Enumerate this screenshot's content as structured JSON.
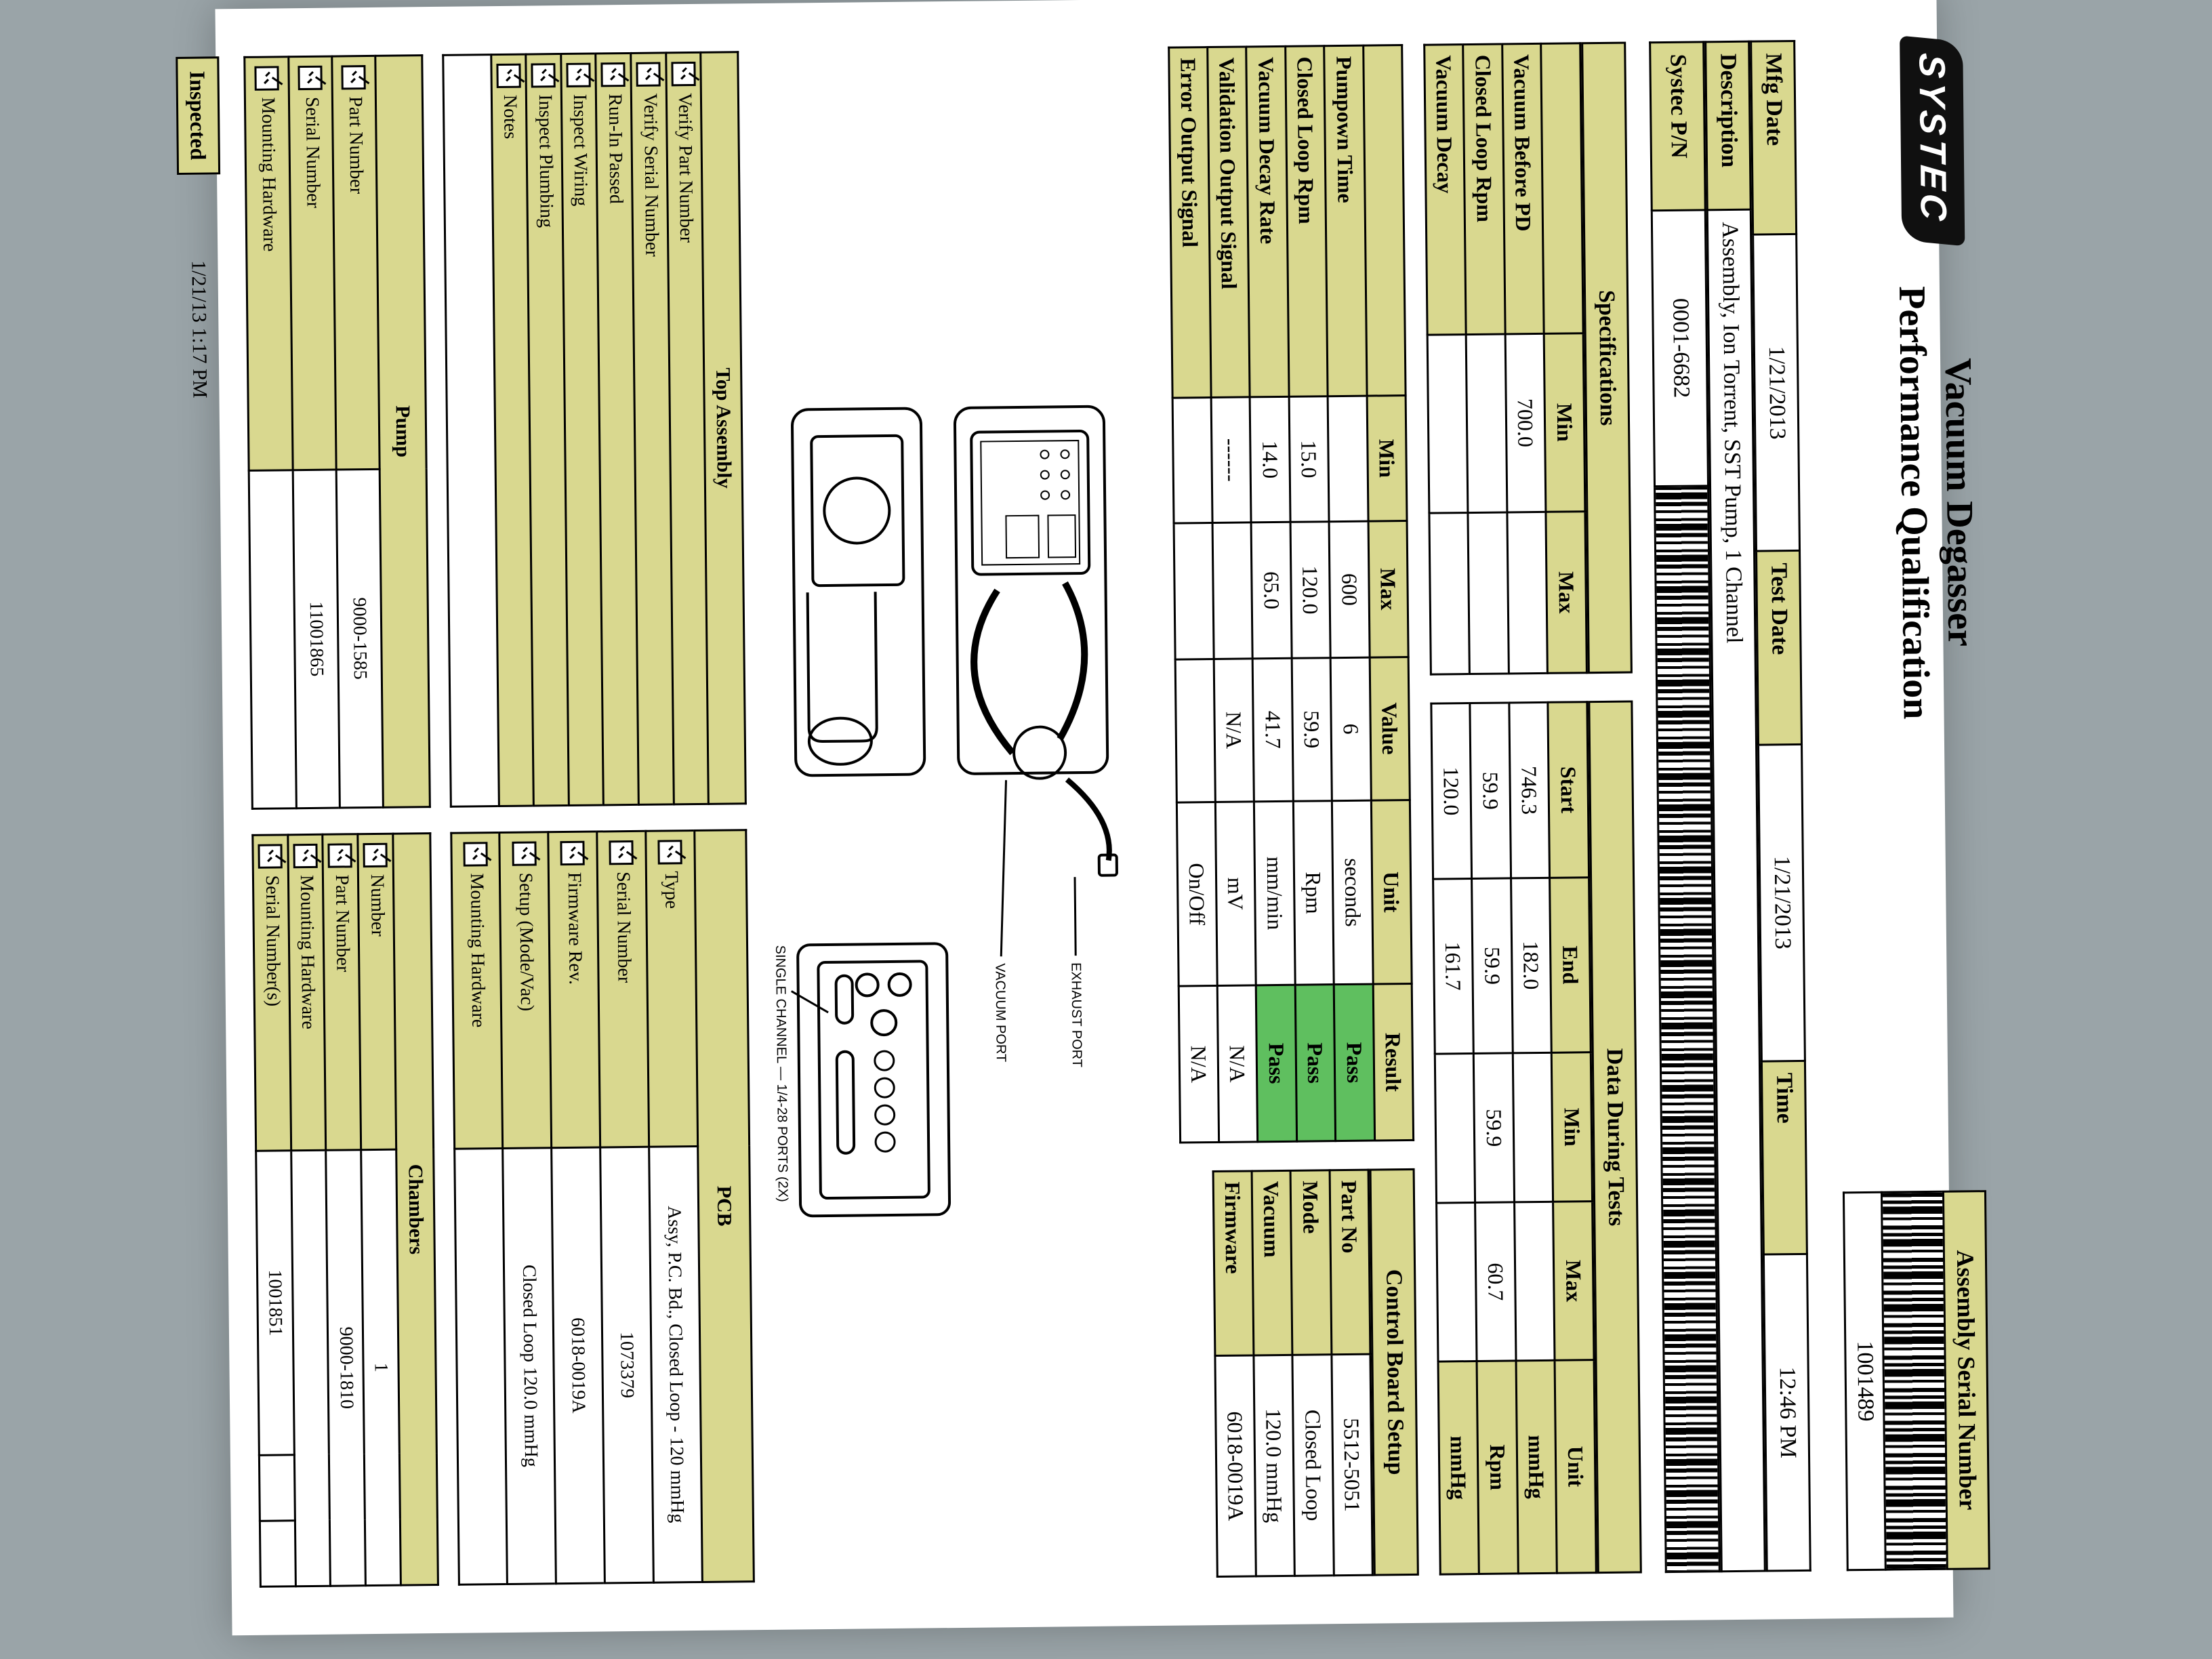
{
  "logo_text": "SYSTEC",
  "title": {
    "line1": "Vacuum Degasser",
    "line2": "Performance Qualification"
  },
  "asm_serial_label": "Assembly Serial Number",
  "asm_serial_value": "1001489",
  "header": {
    "mfg_date_label": "Mfg Date",
    "mfg_date": "1/21/2013",
    "test_date_label": "Test Date",
    "test_date": "1/21/2013",
    "time_label": "Time",
    "time": "12:46 PM",
    "description_label": "Description",
    "description": "Assembly, Ion Torrent, SST Pump, 1 Channel",
    "pn_label": "Systec P/N",
    "pn": "0001-6682"
  },
  "specs": {
    "title": "Specifications",
    "data_title": "Data During Tests",
    "cols_spec": [
      "Min",
      "Max"
    ],
    "cols_data": [
      "Start",
      "End",
      "Min",
      "Max",
      "Unit"
    ],
    "rows": [
      {
        "name": "Vacuum Before PD",
        "min": "700.0",
        "max": "",
        "start": "746.3",
        "end": "182.0",
        "dmin": "",
        "dmax": "",
        "unit": "mmHg"
      },
      {
        "name": "Closed Loop Rpm",
        "min": "",
        "max": "",
        "start": "59.9",
        "end": "59.9",
        "dmin": "59.9",
        "dmax": "60.7",
        "unit": "Rpm"
      },
      {
        "name": "Vacuum Decay",
        "min": "",
        "max": "",
        "start": "120.0",
        "end": "161.7",
        "dmin": "",
        "dmax": "",
        "unit": "mmHg"
      }
    ]
  },
  "results": {
    "cols": [
      "Min",
      "Max",
      "Value",
      "Unit",
      "Result"
    ],
    "rows": [
      {
        "name": "Pumpown Time",
        "min": "",
        "max": "600",
        "value": "6",
        "unit": "seconds",
        "result": "Pass"
      },
      {
        "name": "Closed Loop Rpm",
        "min": "15.0",
        "max": "120.0",
        "value": "59.9",
        "unit": "Rpm",
        "result": "Pass"
      },
      {
        "name": "Vacuum Decay Rate",
        "min": "14.0",
        "max": "65.0",
        "value": "41.7",
        "unit": "mm/min",
        "result": "Pass"
      },
      {
        "name": "Validation Output Signal",
        "min": "------",
        "max": "",
        "value": "N/A",
        "unit": "mV",
        "result": "N/A"
      },
      {
        "name": "Error Output Signal",
        "min": "",
        "max": "",
        "value": "",
        "unit": "On/Off",
        "result": "N/A"
      }
    ]
  },
  "control_board": {
    "title": "Control Board Setup",
    "rows": [
      {
        "label": "Part No",
        "value": "5512-5051"
      },
      {
        "label": "Mode",
        "value": "Closed Loop"
      },
      {
        "label": "Vacuum",
        "value": "120.0 mmHg"
      },
      {
        "label": "Firmware",
        "value": "6018-0019A"
      }
    ]
  },
  "diagram": {
    "labels": {
      "exhaust": "EXHAUST PORT",
      "vacuum": "VACUUM PORT",
      "single_channel": "SINGLE CHANNEL\n1/4-28 PORTS (2X)"
    }
  },
  "top_assembly": {
    "title": "Top Assembly",
    "items": [
      {
        "label": "Verify Part Number",
        "checked": true
      },
      {
        "label": "Verify Serial Number",
        "checked": true
      },
      {
        "label": "Run-In Passed",
        "checked": true
      },
      {
        "label": "Inspect Wiring",
        "checked": true
      },
      {
        "label": "Inspect Plumbing",
        "checked": true
      }
    ],
    "notes_label": "Notes"
  },
  "pcb": {
    "title": "PCB",
    "rows": [
      {
        "label": "Type",
        "checked": true,
        "value": "Assy, P.C. Bd., Closed Loop - 120 mmHg"
      },
      {
        "label": "Serial Number",
        "checked": true,
        "value": "1073379"
      },
      {
        "label": "Firmware Rev.",
        "checked": true,
        "value": "6018-0019A"
      },
      {
        "label": "Setup (Mode/Vac)",
        "checked": true,
        "value": "Closed Loop   120.0 mmHg"
      },
      {
        "label": "Mounting Hardware",
        "checked": true,
        "value": ""
      }
    ]
  },
  "pump": {
    "title": "Pump",
    "rows": [
      {
        "label": "Part Number",
        "checked": true,
        "value": "9000-1585"
      },
      {
        "label": "Serial Number",
        "checked": true,
        "value": "11001865"
      },
      {
        "label": "Mounting Hardware",
        "checked": true,
        "value": ""
      }
    ]
  },
  "chambers": {
    "title": "Chambers",
    "rows": [
      {
        "label": "Number",
        "checked": true,
        "value": "1"
      },
      {
        "label": "Part Number",
        "checked": true,
        "value": "9000-1810"
      },
      {
        "label": "Mounting Hardware",
        "checked": true,
        "value": ""
      },
      {
        "label": "Serial Number(s)",
        "checked": true,
        "value": "1001851",
        "extra_cells": 2
      }
    ]
  },
  "footer": {
    "inspected_label": "Inspected",
    "timestamp": "1/21/13 1:17 PM"
  },
  "colors": {
    "khaki": "#d9d88f",
    "pass_green": "#5fbf5f",
    "border": "#000000",
    "paper": "#ffffff",
    "page_bg": "#9aa4a8"
  }
}
